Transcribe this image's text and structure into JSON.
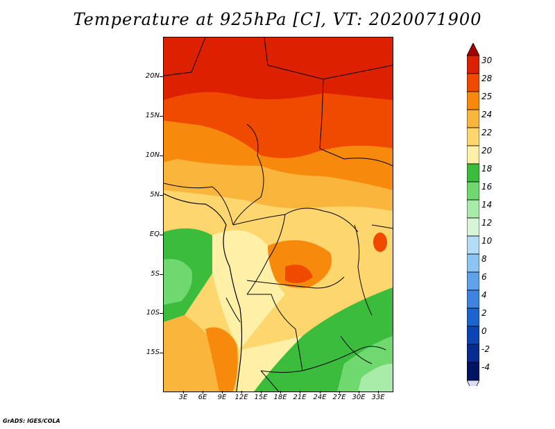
{
  "title": "Temperature at 925hPa [C], VT: 2020071900",
  "credit": "GrADS: IGES/COLA",
  "map": {
    "lat_ticks": [
      "20N",
      "15N",
      "10N",
      "5N",
      "EQ",
      "5S",
      "10S",
      "15S"
    ],
    "lon_ticks": [
      "3E",
      "6E",
      "9E",
      "12E",
      "15E",
      "18E",
      "21E",
      "24E",
      "27E",
      "30E",
      "33E"
    ]
  },
  "colorbar": {
    "labels": [
      "30",
      "28",
      "25",
      "24",
      "22",
      "20",
      "18",
      "16",
      "14",
      "12",
      "10",
      "8",
      "6",
      "4",
      "2",
      "0",
      "-2",
      "-4"
    ],
    "colors": [
      "#a50000",
      "#dc2000",
      "#f04a00",
      "#f7890c",
      "#fab53c",
      "#fdd66e",
      "#fff0a8",
      "#3cbc3c",
      "#6fd86f",
      "#a9eca9",
      "#d7f6d7",
      "#b4dcf8",
      "#8cc4f4",
      "#5ea2ec",
      "#3c84e0",
      "#1c64d0",
      "#0c44b4",
      "#062c90",
      "#001464",
      "#dcdcf8"
    ]
  }
}
